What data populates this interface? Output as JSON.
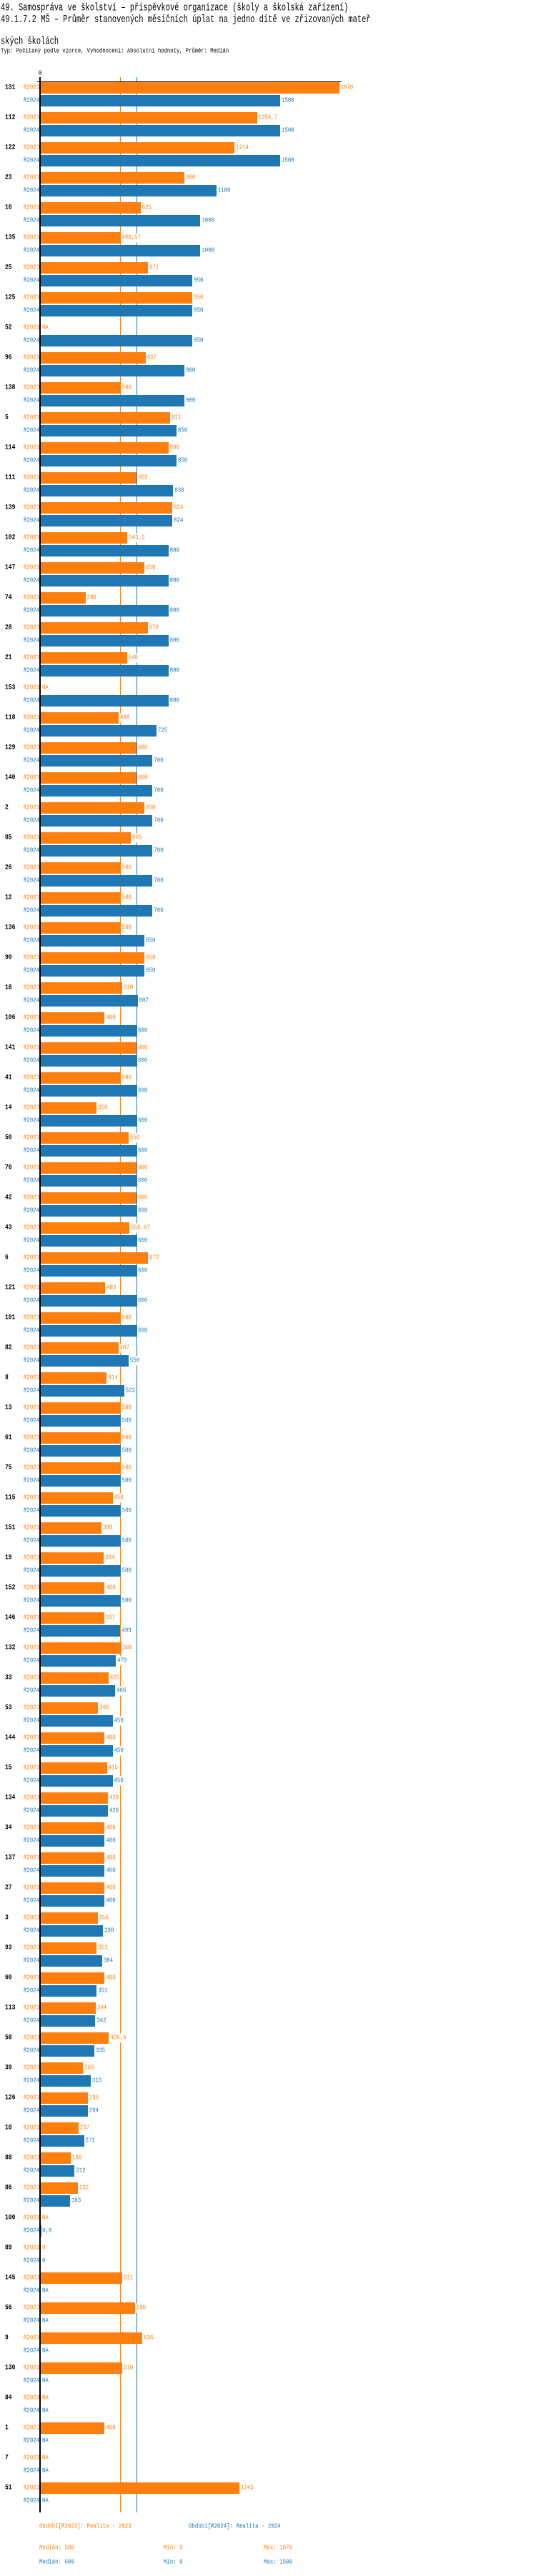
{
  "title": {
    "line1": "49. Samospráva ve školství – příspěvkové organizace (školy a školská zařízení)",
    "line2": "49.1.7.2 MŠ – Průměr stanovených měsíčních úplat na jedno dítě ve zřizovaných mateřských školách"
  },
  "subtitle": "Typ: Počítaný podle vzorce, Vyhodnocení: Absolutní hodnoty, Průměr: Medián",
  "colors": {
    "r2023": "#ff7f0e",
    "r2024": "#1f77b4"
  },
  "chart_data": {
    "type": "bar",
    "orientation": "horizontal",
    "axis_zero_label": "0",
    "xlim": [
      0,
      1870
    ],
    "series_labels": [
      "R2023",
      "R2024"
    ],
    "median_lines": {
      "r2023": 500,
      "r2024": 600
    },
    "groups": [
      [
        "131",
        "1870",
        "1500"
      ],
      [
        "112",
        "1354,7",
        "1500"
      ],
      [
        "122",
        "1214",
        "1500"
      ],
      [
        "23",
        "900",
        "1100"
      ],
      [
        "16",
        "625",
        "1000"
      ],
      [
        "135",
        "498,57",
        "1000"
      ],
      [
        "25",
        "671",
        "950"
      ],
      [
        "125",
        "950",
        "950"
      ],
      [
        "52",
        "NA",
        "950"
      ],
      [
        "96",
        "657",
        "900"
      ],
      [
        "138",
        "500",
        "900"
      ],
      [
        "5",
        "811",
        "850"
      ],
      [
        "114",
        "800",
        "850"
      ],
      [
        "111",
        "602",
        "830"
      ],
      [
        "139",
        "824",
        "824"
      ],
      [
        "102",
        "543,3",
        "800"
      ],
      [
        "147",
        "650",
        "800"
      ],
      [
        "74",
        "280",
        "800"
      ],
      [
        "28",
        "670",
        "800"
      ],
      [
        "21",
        "540",
        "800"
      ],
      [
        "153",
        "NA",
        "800"
      ],
      [
        "118",
        "488",
        "725"
      ],
      [
        "129",
        "600",
        "700"
      ],
      [
        "140",
        "600",
        "700"
      ],
      [
        "2",
        "650",
        "700"
      ],
      [
        "85",
        "565",
        "700"
      ],
      [
        "26",
        "500",
        "700"
      ],
      [
        "12",
        "500",
        "700"
      ],
      [
        "136",
        "500",
        "650"
      ],
      [
        "90",
        "650",
        "650"
      ],
      [
        "18",
        "510",
        "607"
      ],
      [
        "106",
        "400",
        "600"
      ],
      [
        "141",
        "600",
        "600"
      ],
      [
        "41",
        "500",
        "600"
      ],
      [
        "14",
        "350",
        "600"
      ],
      [
        "50",
        "550",
        "600"
      ],
      [
        "76",
        "600",
        "600"
      ],
      [
        "42",
        "600",
        "600"
      ],
      [
        "43",
        "556,67",
        "600"
      ],
      [
        "6",
        "672",
        "600"
      ],
      [
        "121",
        "403",
        "600"
      ],
      [
        "101",
        "500",
        "600"
      ],
      [
        "82",
        "487",
        "550"
      ],
      [
        "8",
        "414",
        "522"
      ],
      [
        "13",
        "500",
        "500"
      ],
      [
        "61",
        "500",
        "500"
      ],
      [
        "75",
        "500",
        "500"
      ],
      [
        "115",
        "450",
        "500"
      ],
      [
        "151",
        "380",
        "500"
      ],
      [
        "19",
        "394",
        "500"
      ],
      [
        "152",
        "400",
        "500"
      ],
      [
        "146",
        "397",
        "499"
      ],
      [
        "132",
        "506",
        "470"
      ],
      [
        "33",
        "425",
        "466"
      ],
      [
        "53",
        "360",
        "450"
      ],
      [
        "144",
        "400",
        "450"
      ],
      [
        "15",
        "415",
        "450"
      ],
      [
        "134",
        "420",
        "420"
      ],
      [
        "34",
        "400",
        "400"
      ],
      [
        "137",
        "400",
        "400"
      ],
      [
        "27",
        "400",
        "400"
      ],
      [
        "3",
        "356",
        "390"
      ],
      [
        "93",
        "351",
        "384"
      ],
      [
        "60",
        "400",
        "351"
      ],
      [
        "113",
        "344",
        "342"
      ],
      [
        "58",
        "426,6",
        "335"
      ],
      [
        "39",
        "265",
        "313"
      ],
      [
        "126",
        "295",
        "294"
      ],
      [
        "10",
        "237",
        "271"
      ],
      [
        "88",
        "188",
        "212"
      ],
      [
        "86",
        "232",
        "183"
      ],
      [
        "100",
        "NA",
        "0,8"
      ],
      [
        "89",
        "0",
        "0"
      ],
      [
        "145",
        "511",
        "NA"
      ],
      [
        "56",
        "590",
        "NA"
      ],
      [
        "9",
        "636",
        "NA"
      ],
      [
        "130",
        "510",
        "NA"
      ],
      [
        "84",
        "NA",
        "NA"
      ],
      [
        "1",
        "400",
        "NA"
      ],
      [
        "7",
        "NA",
        "NA"
      ],
      [
        "51",
        "1245",
        "NA"
      ]
    ]
  },
  "legend": {
    "r2023": "Období[R2023]: Realita - 2023",
    "r2024": "Období[R2024]: Realita - 2024",
    "r2023_median": "Medián: 500",
    "r2023_min": "Min: 0",
    "r2023_max": "Max: 1870",
    "r2024_median": "Medián: 600",
    "r2024_min": "Min: 0",
    "r2024_max": "Max: 1500"
  }
}
